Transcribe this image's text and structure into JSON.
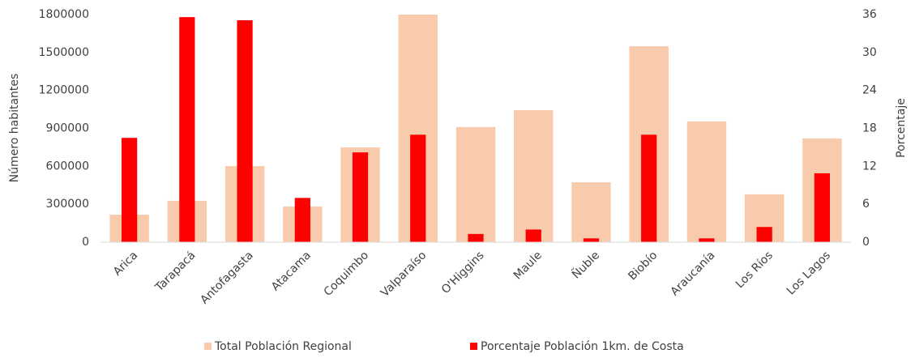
{
  "chart_data": {
    "type": "bar",
    "ylabel": "Número habitantes",
    "y2label": "Porcentaje",
    "categories": [
      "Arica",
      "Tarapacá",
      "Antofagasta",
      "Atacama",
      "Coquimbo",
      "Valparaíso",
      "O'Higgins",
      "Maule",
      "Ñuble",
      "Biobío",
      "Araucanía",
      "Los Ríos",
      "Los Lagos"
    ],
    "series": [
      {
        "name": "Total Población Regional",
        "color": "#f8cbad",
        "values": [
          218000,
          327000,
          602000,
          282000,
          750000,
          1800000,
          910000,
          1044000,
          474000,
          1550000,
          955000,
          378000,
          820000
        ]
      },
      {
        "name": "Porcentaje Población 1km. de Costa",
        "color": "#ff0000",
        "axis": "y2",
        "values": [
          16.5,
          35.6,
          35.1,
          7.0,
          14.2,
          17.0,
          1.3,
          2.0,
          0.6,
          17.0,
          0.6,
          2.4,
          10.9
        ]
      }
    ],
    "ylim": [
      0,
      1800000
    ],
    "yticks": [
      0,
      300000,
      600000,
      900000,
      1200000,
      1500000,
      1800000
    ],
    "y2lim": [
      0,
      36
    ],
    "y2ticks": [
      0,
      6,
      12,
      18,
      24,
      30,
      36
    ],
    "legend": "bottom",
    "grid": false
  }
}
